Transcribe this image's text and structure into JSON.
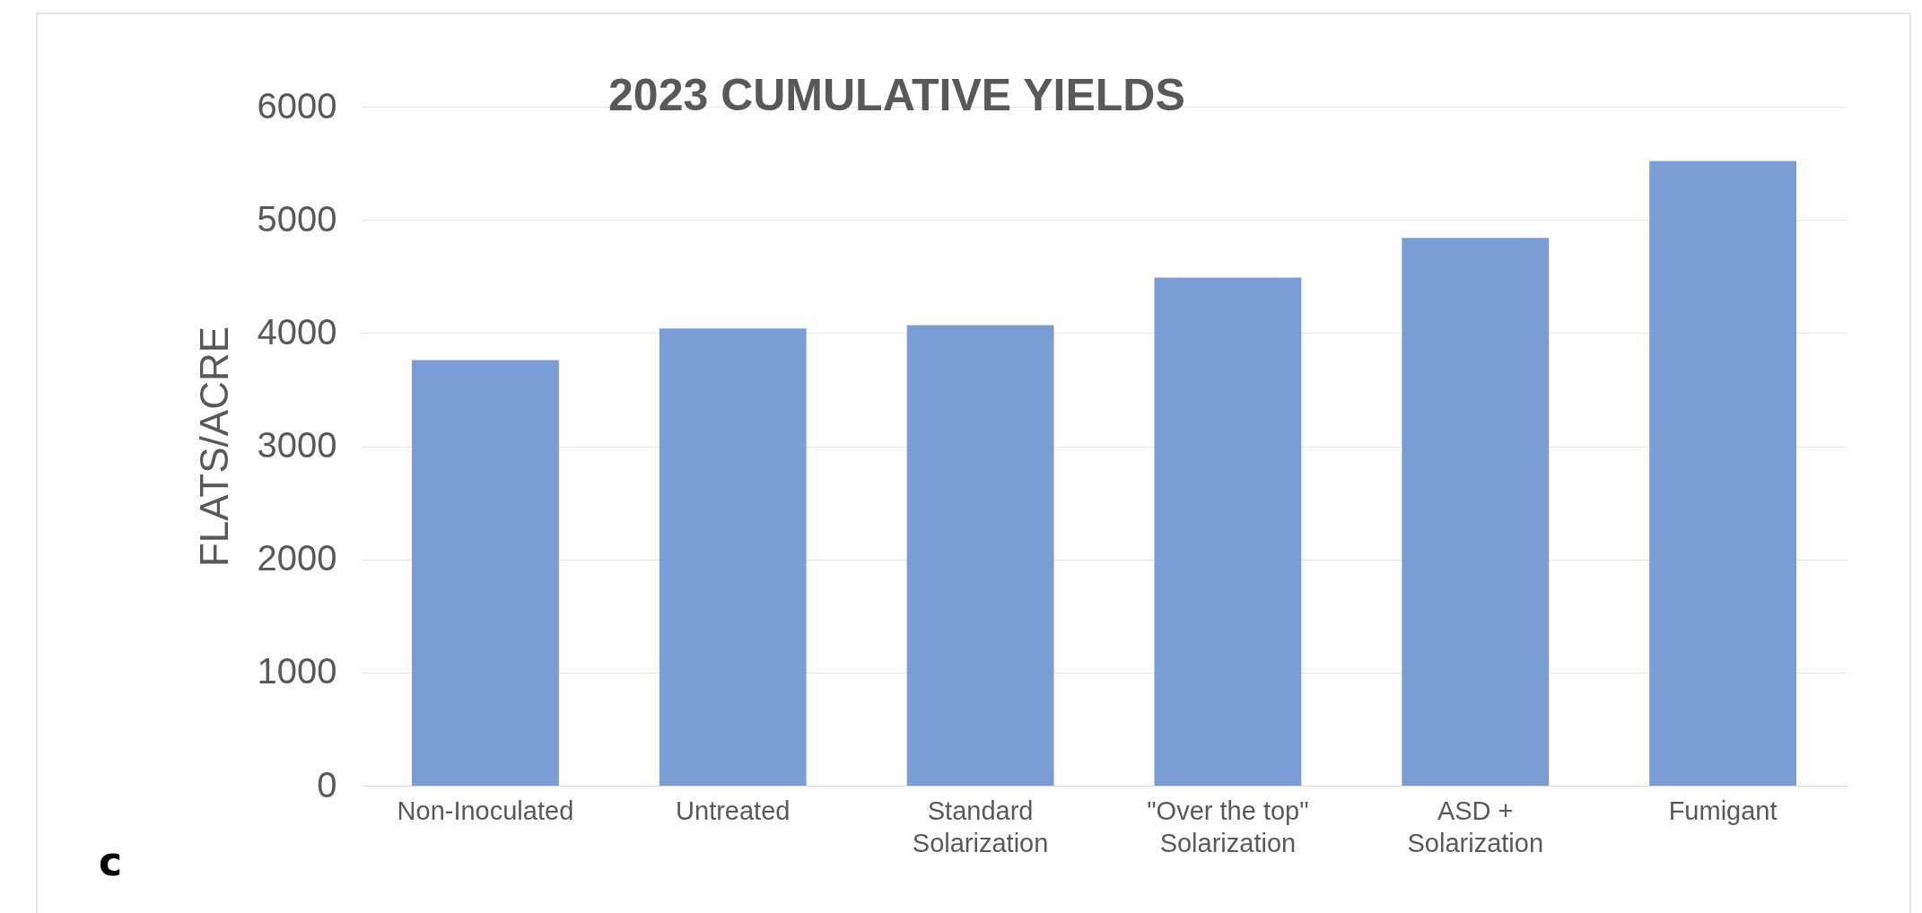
{
  "chart_data": {
    "type": "bar",
    "title": "2023 CUMULATIVE YIELDS",
    "ylabel": "FLATS/ACRE",
    "categories": [
      "Non-Inoculated",
      "Untreated",
      "Standard Solarization",
      "\"Over the top\" Solarization",
      "ASD + Solarization",
      "Fumigant"
    ],
    "values": [
      3760,
      4040,
      4070,
      4490,
      4840,
      5520
    ],
    "color": "#7a9dd6",
    "ylim": [
      0,
      6000
    ],
    "yticks": [
      0,
      1000,
      2000,
      3000,
      4000,
      5000,
      6000
    ],
    "grid": "y",
    "annotations": [
      "c"
    ]
  }
}
